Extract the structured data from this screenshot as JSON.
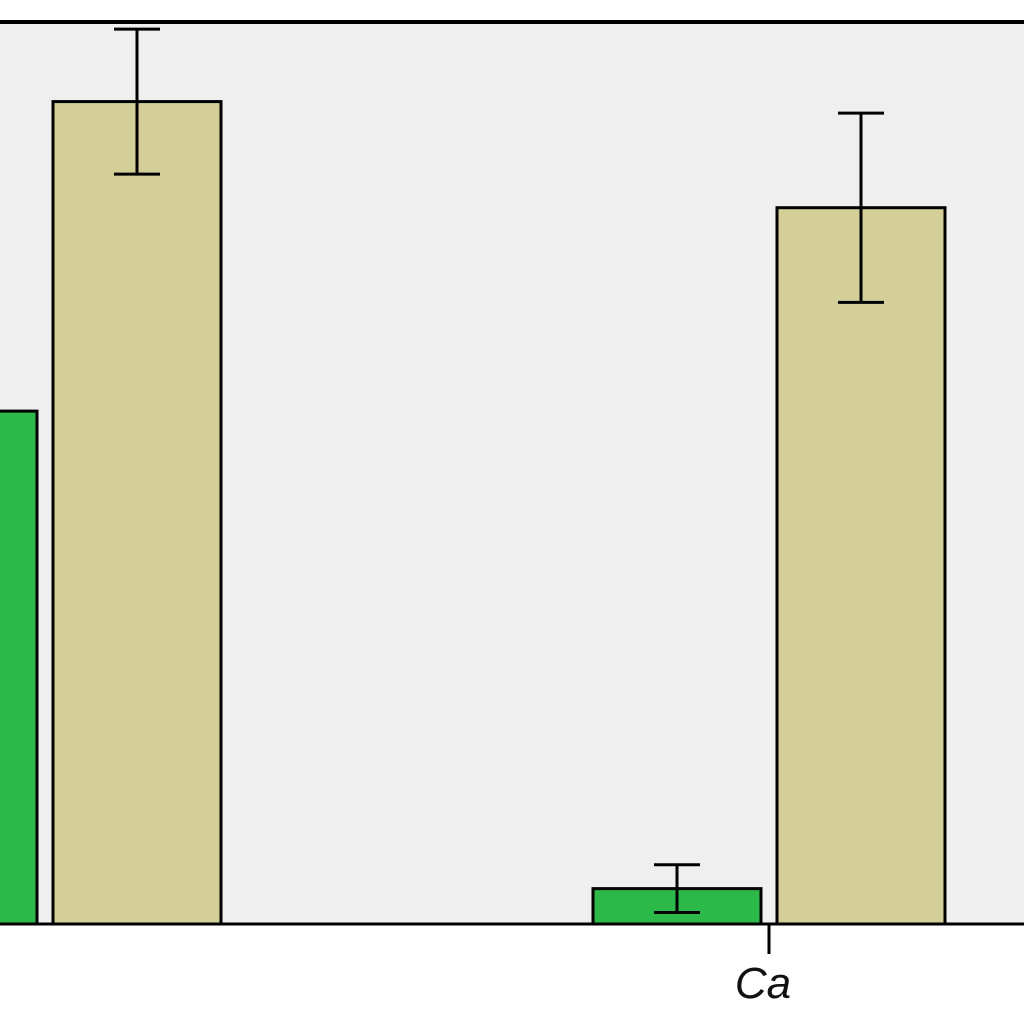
{
  "chart_data": {
    "type": "bar",
    "categories": [
      "",
      "Ca"
    ],
    "series": [
      {
        "color": "#2db84a",
        "values": [
          58,
          4
        ],
        "errors": [
          null,
          2.7
        ]
      },
      {
        "color": "#d4cf98",
        "values": [
          93,
          81
        ],
        "errors": [
          8.2,
          10.7
        ]
      }
    ],
    "ylim": [
      0,
      102
    ],
    "grid": false,
    "plot_background": "#efefef",
    "xlabel": "",
    "ylabel": ""
  }
}
